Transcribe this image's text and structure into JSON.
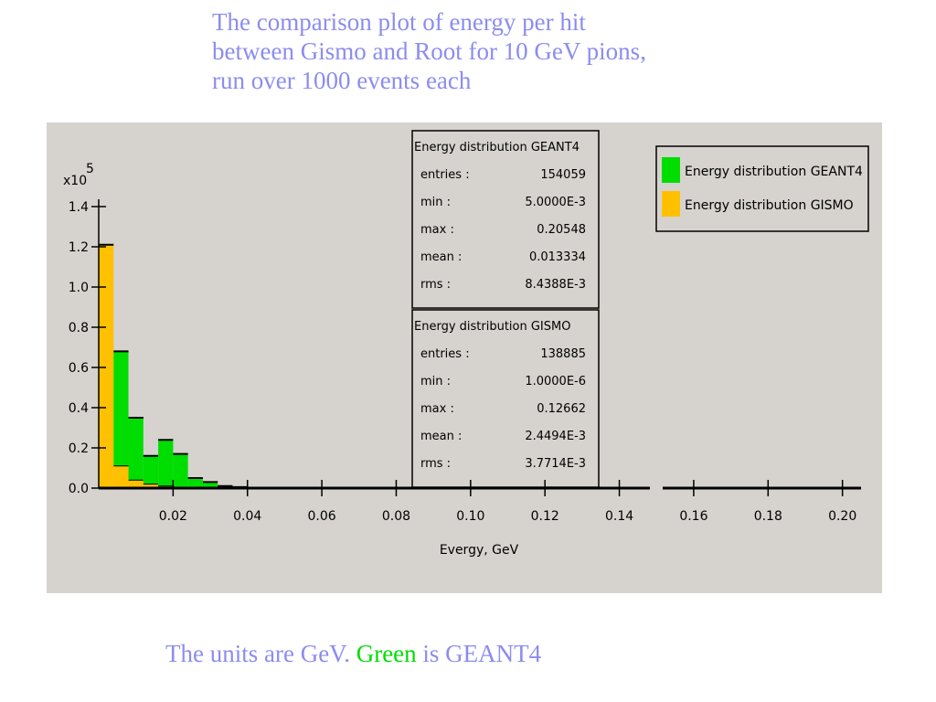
{
  "title": {
    "lines": [
      "The comparison plot of energy per hit",
      "between Gismo and Root for 10 GeV pions,",
      "run over 1000 events each"
    ]
  },
  "caption": {
    "prefix": "The units are GeV. ",
    "highlight": "Green",
    "suffix": " is GEANT4"
  },
  "colors": {
    "geant4": "#00dd00",
    "gismo": "#ffc000",
    "panel": "#d6d3ce",
    "text_blue": "#8c8cf0"
  },
  "chart_data": {
    "type": "bar",
    "histogram": true,
    "stacked": true,
    "xlabel": "Evergy, GeV",
    "ylabel_multiplier": "x10",
    "ylabel_exponent": "5",
    "xlim": [
      0,
      0.205
    ],
    "ylim": [
      0,
      1.4
    ],
    "xticks": [
      "0.02",
      "0.04",
      "0.06",
      "0.08",
      "0.10",
      "0.12",
      "0.14",
      "0.16",
      "0.18",
      "0.20"
    ],
    "yticks": [
      "0.0",
      "0.2",
      "0.4",
      "0.6",
      "0.8",
      "1.0",
      "1.2",
      "1.4"
    ],
    "bin_width": 0.004,
    "bin_starts": [
      0.0,
      0.004,
      0.008,
      0.012,
      0.016,
      0.02,
      0.024,
      0.028,
      0.032,
      0.036
    ],
    "series": [
      {
        "name": "Energy distribution GEANT4",
        "values": [
          0.0,
          0.57,
          0.31,
          0.14,
          0.23,
          0.17,
          0.05,
          0.03,
          0.01,
          0.005
        ]
      },
      {
        "name": "Energy distribution GISMO",
        "values": [
          1.21,
          0.11,
          0.04,
          0.02,
          0.01,
          0.0,
          0.0,
          0.0,
          0.0,
          0.0
        ]
      }
    ],
    "stats": [
      {
        "name": "Energy distribution GEANT4",
        "rows": [
          {
            "label": "entries :",
            "value": "154059"
          },
          {
            "label": "min :",
            "value": "5.0000E-3"
          },
          {
            "label": "max :",
            "value": "0.20548"
          },
          {
            "label": "mean :",
            "value": "0.013334"
          },
          {
            "label": "rms :",
            "value": "8.4388E-3"
          }
        ]
      },
      {
        "name": "Energy distribution GISMO",
        "rows": [
          {
            "label": "entries :",
            "value": "138885"
          },
          {
            "label": "min :",
            "value": "1.0000E-6"
          },
          {
            "label": "max :",
            "value": "0.12662"
          },
          {
            "label": "mean :",
            "value": "2.4494E-3"
          },
          {
            "label": "rms :",
            "value": "3.7714E-3"
          }
        ]
      }
    ],
    "legend_position": "top-right",
    "grid": false
  }
}
